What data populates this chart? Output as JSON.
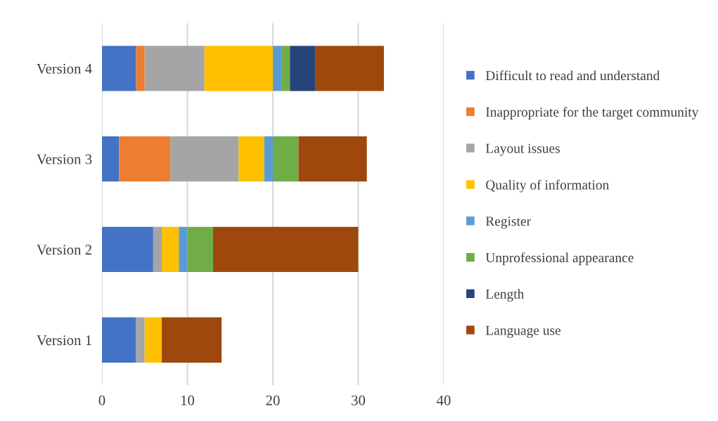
{
  "chart_data": {
    "type": "bar",
    "orientation": "horizontal",
    "stacked": true,
    "categories": [
      "Version 4",
      "Version 3",
      "Version 2",
      "Version 1"
    ],
    "series": [
      {
        "name": "Difficult to read and understand",
        "color": "#4472c4",
        "values": [
          4,
          2,
          6,
          4
        ]
      },
      {
        "name": "Inappropriate for the target community",
        "color": "#ed7d31",
        "values": [
          1,
          6,
          0,
          0
        ]
      },
      {
        "name": "Layout issues",
        "color": "#a5a5a5",
        "values": [
          7,
          8,
          1,
          1
        ]
      },
      {
        "name": "Quality of information",
        "color": "#ffc000",
        "values": [
          8,
          3,
          2,
          2
        ]
      },
      {
        "name": "Register",
        "color": "#5b9bd5",
        "values": [
          1,
          1,
          1,
          0
        ]
      },
      {
        "name": "Unprofessional appearance",
        "color": "#70ad47",
        "values": [
          1,
          3,
          3,
          0
        ]
      },
      {
        "name": "Length",
        "color": "#264478",
        "values": [
          3,
          0,
          0,
          0
        ]
      },
      {
        "name": "Language use",
        "color": "#9e480e",
        "values": [
          8,
          8,
          17,
          7
        ]
      }
    ],
    "xlim": [
      0,
      40
    ],
    "xticks": [
      0,
      10,
      20,
      30,
      40
    ],
    "grid": "x",
    "legend": "right"
  }
}
